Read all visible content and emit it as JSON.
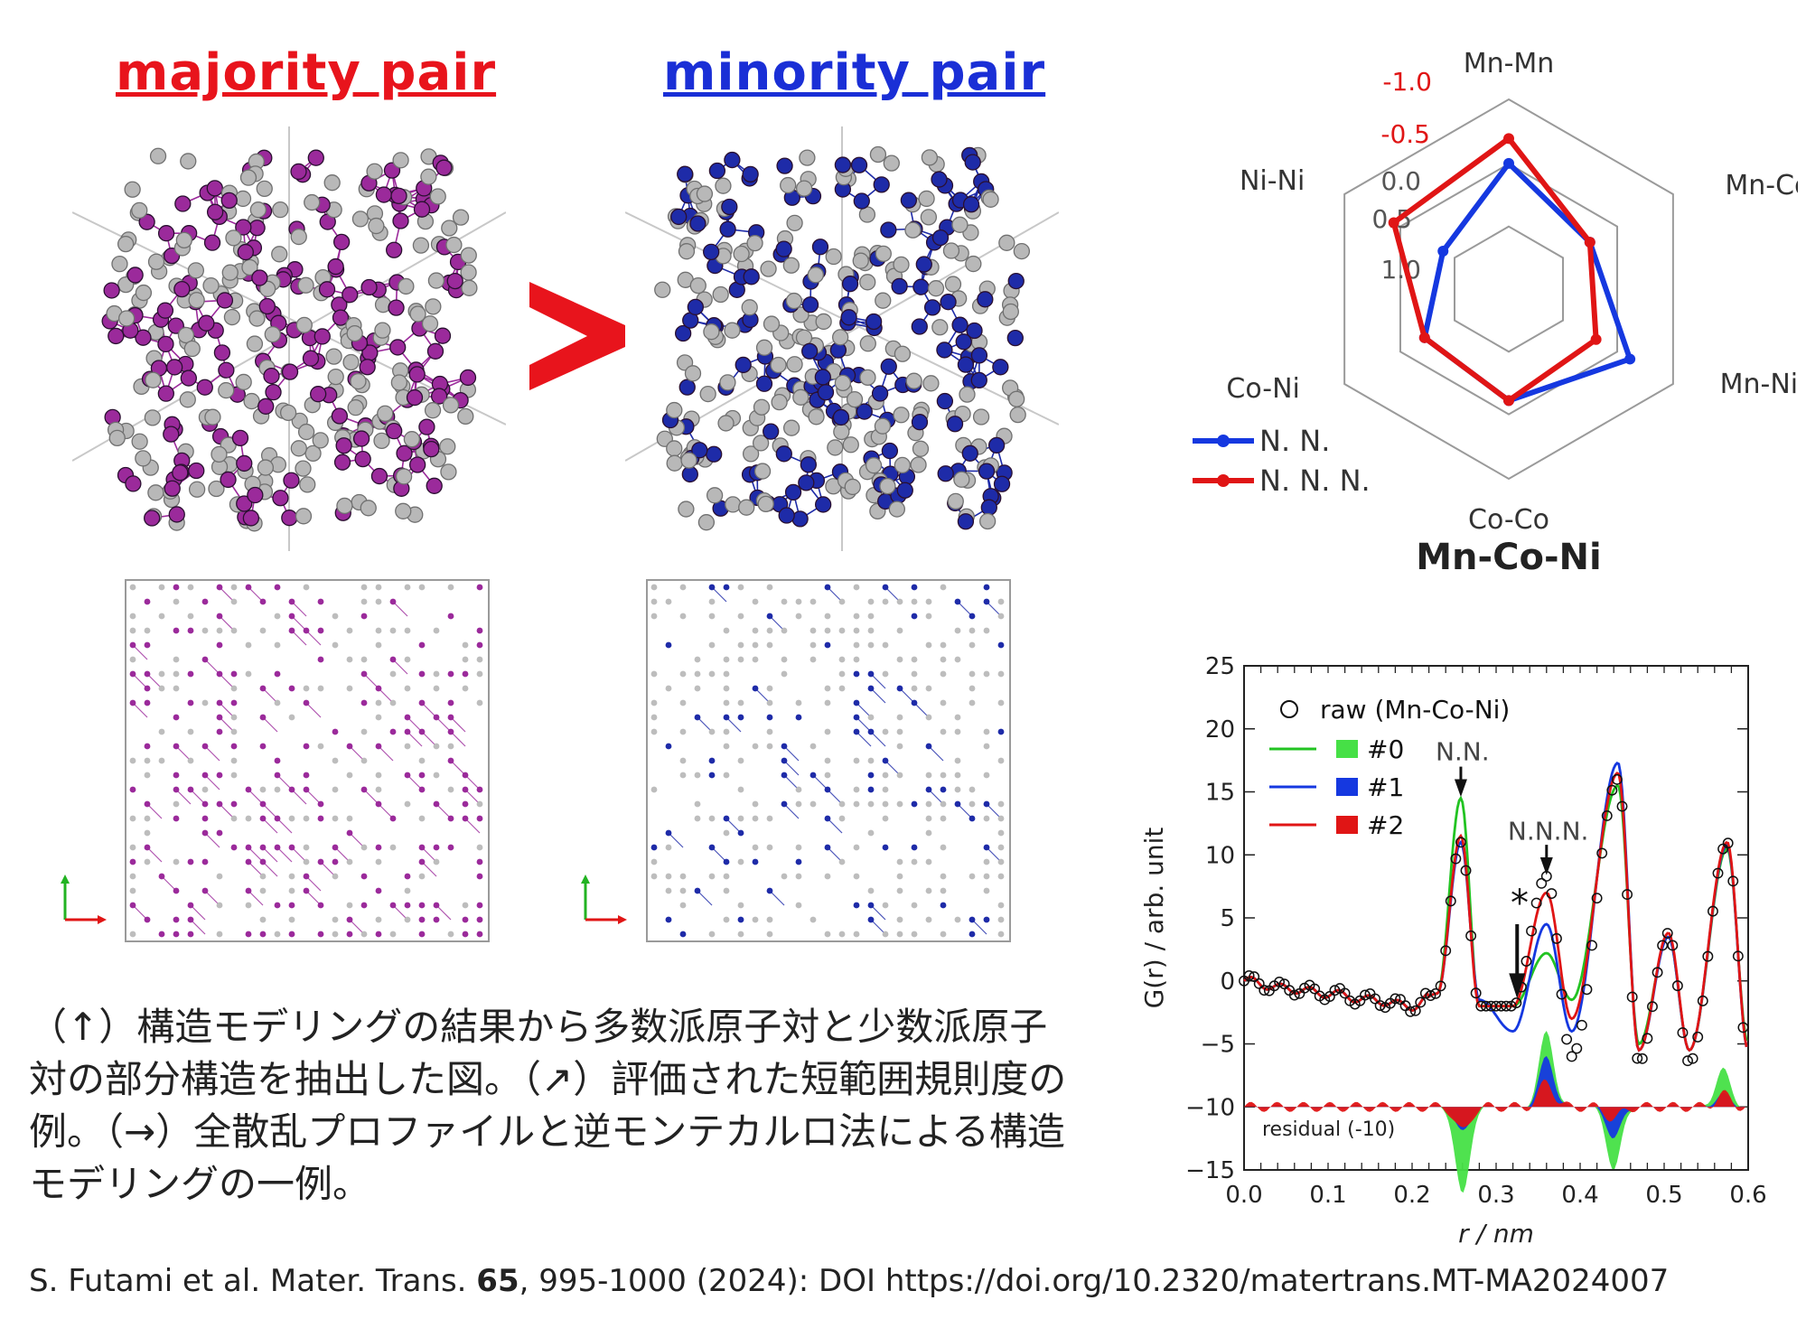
{
  "panels": {
    "majority_title": "majority pair",
    "minority_title": "minority pair",
    "greater_symbol": ">",
    "colors": {
      "majority": "#9b2a9b",
      "minority": "#1e2ba8",
      "neutral": "#b8b8b8",
      "majority_title": "#e8141c",
      "minority_title": "#1a2fd6"
    }
  },
  "radar": {
    "axes": [
      "Mn-Mn",
      "Mn-Co",
      "Mn-Ni",
      "Co-Co",
      "Co-Ni",
      "Ni-Ni"
    ],
    "scale_labels": [
      "-1.0",
      "-0.5",
      "0.0",
      "0.5",
      "1.0"
    ],
    "title": "Mn-Co-Ni",
    "legend": [
      "N. N.",
      "N. N. N."
    ]
  },
  "caption": "（↑）構造モデリングの結果から多数派原子対と少数派原子対の部分構造を抽出した図。（↗）評価された短範囲規則度の例。（→）全散乱プロファイルと逆モンテカルロ法による構造モデリングの一例。",
  "citation": {
    "prefix": "S. Futami et al. Mater. Trans. ",
    "volume": "65",
    "suffix": ", 995-1000 (2024): DOI https://doi.org/10.2320/matertrans.MT-MA2024007"
  },
  "chart_data": [
    {
      "type": "radar",
      "title": "Mn-Co-Ni",
      "categories": [
        "Mn-Mn",
        "Mn-Co",
        "Mn-Ni",
        "Co-Co",
        "Co-Ni",
        "Ni-Ni"
      ],
      "scale": [
        -1.0,
        1.0
      ],
      "series": [
        {
          "name": "N. N.",
          "color": "#1538e0",
          "values": [
            -0.1,
            0.35,
            -0.3,
            0.1,
            0.3,
            0.6
          ]
        },
        {
          "name": "N. N. N.",
          "color": "#e01515",
          "values": [
            -0.45,
            0.35,
            0.25,
            0.1,
            0.3,
            -0.2
          ]
        }
      ],
      "legend_position": "bottom-left"
    },
    {
      "type": "line",
      "xlabel": "r / nm",
      "ylabel": "G(r) / arb. unit",
      "xlim": [
        0.0,
        0.6
      ],
      "ylim": [
        -15,
        25
      ],
      "xticks": [
        "0.0",
        "0.1",
        "0.2",
        "0.3",
        "0.4",
        "0.5",
        "0.6"
      ],
      "yticks": [
        "25",
        "20",
        "15",
        "10",
        "5",
        "0",
        "-5",
        "-10",
        "-15"
      ],
      "legend": [
        "raw (Mn-Co-Ni)",
        "#0",
        "#1",
        "#2"
      ],
      "annotations": [
        "N.N.",
        "N.N.N.",
        "*",
        "residual (-10)"
      ],
      "series": [
        {
          "name": "#0",
          "color": "#22c322",
          "x": [
            0.0,
            0.05,
            0.1,
            0.15,
            0.2,
            0.23,
            0.258,
            0.28,
            0.32,
            0.36,
            0.39,
            0.445,
            0.47,
            0.505,
            0.53,
            0.575,
            0.6
          ],
          "y": [
            0,
            -0.6,
            -1,
            -1.5,
            -2,
            -1,
            14.5,
            -2,
            -2,
            2.2,
            -1.5,
            15.5,
            -5,
            3.5,
            -5.5,
            10.5,
            -5
          ]
        },
        {
          "name": "#1",
          "color": "#1538e0",
          "x": [
            0.0,
            0.05,
            0.1,
            0.15,
            0.2,
            0.23,
            0.258,
            0.28,
            0.32,
            0.36,
            0.39,
            0.445,
            0.47,
            0.505,
            0.53,
            0.575,
            0.6
          ],
          "y": [
            0,
            -0.6,
            -1,
            -1.5,
            -2,
            -1,
            11,
            -1.5,
            -4,
            4.5,
            -4,
            17.3,
            -5.5,
            3.5,
            -5.5,
            10.8,
            -5.5
          ]
        },
        {
          "name": "#2",
          "color": "#e01515",
          "x": [
            0.0,
            0.05,
            0.1,
            0.15,
            0.2,
            0.23,
            0.258,
            0.28,
            0.32,
            0.36,
            0.39,
            0.445,
            0.47,
            0.505,
            0.53,
            0.575,
            0.6
          ],
          "y": [
            0,
            -0.6,
            -1,
            -1.5,
            -2,
            -1,
            11.5,
            -2,
            -2,
            7,
            -3,
            16.5,
            -5.5,
            3.8,
            -5.5,
            11,
            -5.5
          ]
        },
        {
          "name": "raw (Mn-Co-Ni)",
          "color": "#111111",
          "x": [
            0.0,
            0.05,
            0.1,
            0.15,
            0.2,
            0.23,
            0.258,
            0.28,
            0.32,
            0.36,
            0.39,
            0.445,
            0.47,
            0.505,
            0.53,
            0.575,
            0.6
          ],
          "y": [
            0,
            -0.6,
            -1,
            -1.5,
            -2,
            -1,
            11,
            -2,
            -2,
            8.3,
            -6,
            16,
            -6.5,
            3.8,
            -6.5,
            11,
            -6
          ]
        }
      ]
    }
  ]
}
